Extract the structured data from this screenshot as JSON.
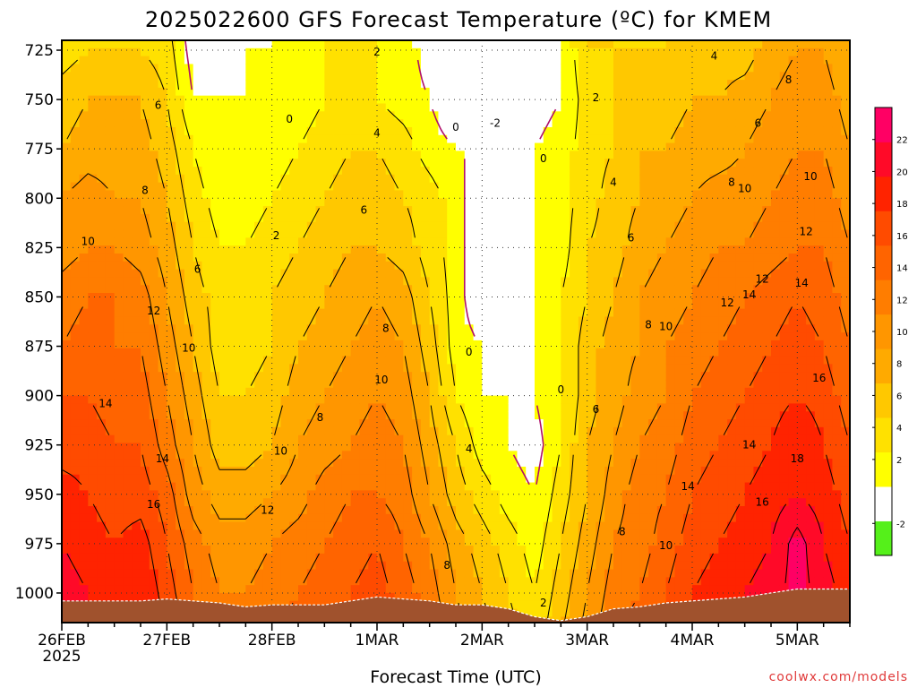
{
  "chart_data": {
    "type": "heatmap",
    "title": "2025022600 GFS Forecast Temperature (ºC) for KMEM",
    "xlabel": "Forecast Time (UTC)",
    "ylabel": "",
    "credit": "coolwx.com/models",
    "x_ticks": [
      {
        "label": "26FEB",
        "sub": "2025",
        "t": 0
      },
      {
        "label": "27FEB",
        "t": 24
      },
      {
        "label": "28FEB",
        "t": 48
      },
      {
        "label": "1MAR",
        "t": 72
      },
      {
        "label": "2MAR",
        "t": 96
      },
      {
        "label": "3MAR",
        "t": 120
      },
      {
        "label": "4MAR",
        "t": 144
      },
      {
        "label": "5MAR",
        "t": 168
      }
    ],
    "x_range_hours": [
      0,
      180
    ],
    "y_ticks": [
      725,
      750,
      775,
      800,
      825,
      850,
      875,
      900,
      925,
      950,
      975,
      1000
    ],
    "y_range_hpa": [
      1015,
      720
    ],
    "colorbar": {
      "levels": [
        -4,
        -2,
        0,
        2,
        4,
        6,
        8,
        10,
        12,
        14,
        16,
        18,
        20,
        22,
        24
      ],
      "tick_labels": [
        "-2",
        "2",
        "4",
        "6",
        "8",
        "10",
        "12",
        "14",
        "16",
        "18",
        "20",
        "22"
      ],
      "tick_values": [
        -2,
        2,
        4,
        6,
        8,
        10,
        12,
        14,
        16,
        18,
        20,
        22
      ],
      "colors": [
        "#55f01a",
        "#ffffff",
        "#ffff00",
        "#ffe100",
        "#ffc800",
        "#ffaa00",
        "#ff9600",
        "#ff7d00",
        "#ff6400",
        "#ff4b00",
        "#ff2300",
        "#ff0a28",
        "#ff0064"
      ]
    },
    "hours": [
      0,
      6,
      12,
      18,
      24,
      30,
      36,
      42,
      48,
      54,
      60,
      66,
      72,
      78,
      84,
      90,
      96,
      102,
      108,
      114,
      120,
      126,
      132,
      138,
      144,
      150,
      156,
      162,
      168,
      174,
      180
    ],
    "series": [
      {
        "level": 725,
        "values": [
          3,
          4,
          4,
          4,
          3,
          -1,
          -1,
          0,
          0,
          1,
          2,
          2,
          2,
          1,
          -1,
          -2,
          -2,
          -2,
          -1,
          0,
          4,
          4,
          4,
          4,
          5,
          5,
          5,
          7,
          8,
          8,
          6
        ]
      },
      {
        "level": 750,
        "values": [
          5,
          6,
          6,
          6,
          4,
          0,
          0,
          0,
          1,
          1,
          2,
          2,
          2,
          1,
          0,
          -2,
          -2,
          -2,
          -1,
          0,
          3,
          4,
          5,
          5,
          6,
          6,
          7,
          8,
          9,
          9,
          7
        ]
      },
      {
        "level": 775,
        "values": [
          6,
          7,
          7,
          7,
          5,
          2,
          0,
          1,
          1,
          2,
          3,
          4,
          4,
          3,
          1,
          0,
          0,
          -1,
          0,
          1,
          3,
          4,
          6,
          6,
          7,
          7,
          8,
          9,
          10,
          10,
          8
        ]
      },
      {
        "level": 800,
        "values": [
          8,
          9,
          8,
          8,
          6,
          3,
          1,
          1,
          2,
          3,
          4,
          5,
          5,
          4,
          3,
          1,
          -2,
          -2,
          0,
          1,
          3,
          5,
          6,
          7,
          8,
          9,
          9,
          10,
          11,
          11,
          9
        ]
      },
      {
        "level": 825,
        "values": [
          9,
          10,
          10,
          9,
          7,
          4,
          2,
          2,
          3,
          4,
          5,
          6,
          6,
          5,
          3,
          1,
          -2,
          -2,
          0,
          1,
          4,
          5,
          7,
          8,
          9,
          10,
          10,
          11,
          12,
          12,
          10
        ]
      },
      {
        "level": 850,
        "values": [
          11,
          12,
          12,
          11,
          8,
          5,
          3,
          3,
          4,
          5,
          6,
          7,
          8,
          7,
          4,
          1,
          -2,
          -1,
          0,
          2,
          4,
          6,
          8,
          9,
          10,
          11,
          12,
          13,
          14,
          13,
          11
        ]
      },
      {
        "level": 875,
        "values": [
          12,
          13,
          12,
          12,
          9,
          6,
          3,
          3,
          4,
          6,
          7,
          8,
          9,
          8,
          5,
          1,
          0,
          -1,
          0,
          2,
          5,
          7,
          8,
          10,
          11,
          12,
          13,
          14,
          15,
          14,
          12
        ]
      },
      {
        "level": 900,
        "values": [
          14,
          14,
          13,
          13,
          10,
          7,
          4,
          4,
          5,
          7,
          8,
          9,
          10,
          9,
          6,
          2,
          0,
          0,
          0,
          2,
          5,
          7,
          9,
          10,
          12,
          13,
          14,
          15,
          16,
          15,
          13
        ]
      },
      {
        "level": 925,
        "values": [
          15,
          15,
          14,
          14,
          11,
          8,
          5,
          5,
          6,
          8,
          9,
          10,
          11,
          10,
          7,
          4,
          1,
          0,
          -1,
          2,
          6,
          8,
          10,
          11,
          13,
          14,
          15,
          16,
          18,
          16,
          14
        ]
      },
      {
        "level": 950,
        "values": [
          17,
          16,
          15,
          15,
          13,
          9,
          7,
          7,
          8,
          9,
          11,
          12,
          12,
          11,
          8,
          5,
          3,
          1,
          0,
          3,
          6,
          9,
          11,
          12,
          14,
          15,
          16,
          17,
          18,
          17,
          15
        ]
      },
      {
        "level": 975,
        "values": [
          18,
          17,
          16,
          17,
          14,
          11,
          9,
          9,
          10,
          11,
          12,
          13,
          14,
          12,
          10,
          7,
          5,
          3,
          1,
          4,
          7,
          10,
          11,
          13,
          15,
          16,
          17,
          18,
          21,
          18,
          16
        ]
      },
      {
        "level": 1000,
        "values": [
          19,
          18,
          17,
          18,
          15,
          12,
          10,
          10,
          11,
          12,
          13,
          14,
          15,
          13,
          11,
          8,
          6,
          4,
          2,
          5,
          8,
          11,
          12,
          14,
          16,
          17,
          18,
          19,
          21,
          19,
          17
        ]
      }
    ],
    "contour_labels": [
      {
        "text": "2",
        "t": 72,
        "p": 726
      },
      {
        "text": "0",
        "t": 52,
        "p": 760
      },
      {
        "text": "0",
        "t": 90,
        "p": 764
      },
      {
        "text": "-2",
        "t": 99,
        "p": 762
      },
      {
        "text": "2",
        "t": 122,
        "p": 749
      },
      {
        "text": "4",
        "t": 149,
        "p": 728
      },
      {
        "text": "8",
        "t": 166,
        "p": 740
      },
      {
        "text": "6",
        "t": 22,
        "p": 753
      },
      {
        "text": "6",
        "t": 159,
        "p": 762
      },
      {
        "text": "4",
        "t": 72,
        "p": 767
      },
      {
        "text": "0",
        "t": 110,
        "p": 780
      },
      {
        "text": "8",
        "t": 19,
        "p": 796
      },
      {
        "text": "4",
        "t": 126,
        "p": 792
      },
      {
        "text": "8",
        "t": 153,
        "p": 792
      },
      {
        "text": "10",
        "t": 156,
        "p": 795
      },
      {
        "text": "10",
        "t": 171,
        "p": 789
      },
      {
        "text": "6",
        "t": 69,
        "p": 806
      },
      {
        "text": "2",
        "t": 49,
        "p": 819
      },
      {
        "text": "10",
        "t": 6,
        "p": 822
      },
      {
        "text": "6",
        "t": 31,
        "p": 836
      },
      {
        "text": "6",
        "t": 130,
        "p": 820
      },
      {
        "text": "12",
        "t": 170,
        "p": 817
      },
      {
        "text": "12",
        "t": 160,
        "p": 841
      },
      {
        "text": "14",
        "t": 169,
        "p": 843
      },
      {
        "text": "14",
        "t": 157,
        "p": 849
      },
      {
        "text": "12",
        "t": 152,
        "p": 853
      },
      {
        "text": "12",
        "t": 21,
        "p": 857
      },
      {
        "text": "8",
        "t": 74,
        "p": 866
      },
      {
        "text": "8",
        "t": 134,
        "p": 864
      },
      {
        "text": "10",
        "t": 138,
        "p": 865
      },
      {
        "text": "10",
        "t": 29,
        "p": 876
      },
      {
        "text": "0",
        "t": 93,
        "p": 878
      },
      {
        "text": "10",
        "t": 73,
        "p": 892
      },
      {
        "text": "16",
        "t": 173,
        "p": 891
      },
      {
        "text": "0",
        "t": 114,
        "p": 897
      },
      {
        "text": "14",
        "t": 10,
        "p": 904
      },
      {
        "text": "6",
        "t": 122,
        "p": 907
      },
      {
        "text": "8",
        "t": 59,
        "p": 911
      },
      {
        "text": "10",
        "t": 50,
        "p": 928
      },
      {
        "text": "4",
        "t": 93,
        "p": 927
      },
      {
        "text": "14",
        "t": 157,
        "p": 925
      },
      {
        "text": "18",
        "t": 168,
        "p": 932
      },
      {
        "text": "14",
        "t": 23,
        "p": 932
      },
      {
        "text": "14",
        "t": 143,
        "p": 946
      },
      {
        "text": "16",
        "t": 21,
        "p": 955
      },
      {
        "text": "12",
        "t": 47,
        "p": 958
      },
      {
        "text": "16",
        "t": 160,
        "p": 954
      },
      {
        "text": "8",
        "t": 128,
        "p": 969
      },
      {
        "text": "10",
        "t": 138,
        "p": 976
      },
      {
        "text": "8",
        "t": 88,
        "p": 986
      },
      {
        "text": "2",
        "t": 110,
        "p": 1005
      }
    ],
    "surface_pressure": [
      1004,
      1004,
      1004,
      1004,
      1003,
      1004,
      1005,
      1007,
      1006,
      1006,
      1006,
      1004,
      1002,
      1003,
      1004,
      1006,
      1006,
      1008,
      1012,
      1014,
      1012,
      1008,
      1007,
      1005,
      1004,
      1003,
      1002,
      1000,
      998,
      998,
      998
    ]
  }
}
